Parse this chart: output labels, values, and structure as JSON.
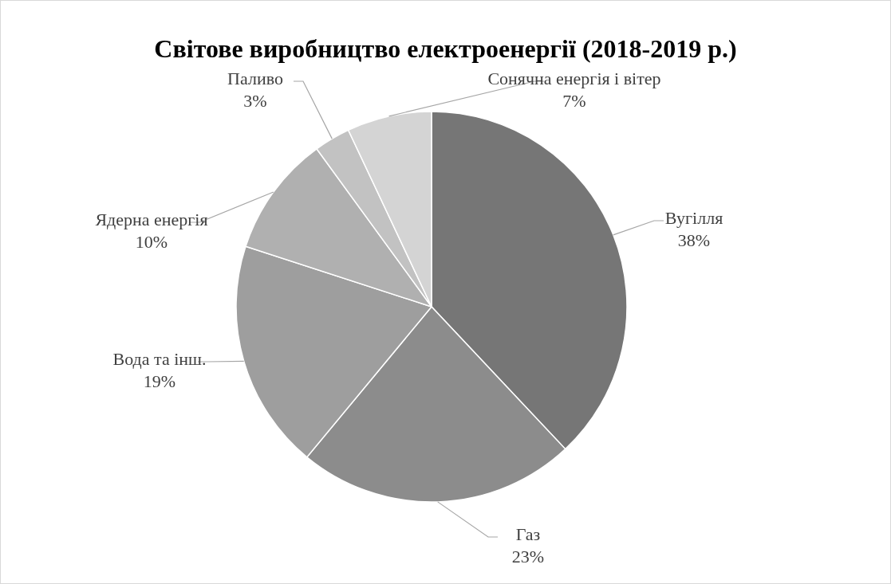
{
  "chart_data": {
    "type": "pie",
    "title": "Світове виробництво електроенергії (2018-2019 р.)",
    "categories": [
      "Вугілля",
      "Газ",
      "Вода та інш.",
      "Ядерна енергія",
      "Паливо",
      "Сонячна енергія і вітер"
    ],
    "values": [
      38,
      23,
      19,
      10,
      3,
      7
    ],
    "colors": [
      "#767676",
      "#8c8c8c",
      "#9e9e9e",
      "#b0b0b0",
      "#c2c2c2",
      "#d4d4d4"
    ],
    "value_labels": [
      "38%",
      "23%",
      "19%",
      "10%",
      "3%",
      "7%"
    ]
  }
}
